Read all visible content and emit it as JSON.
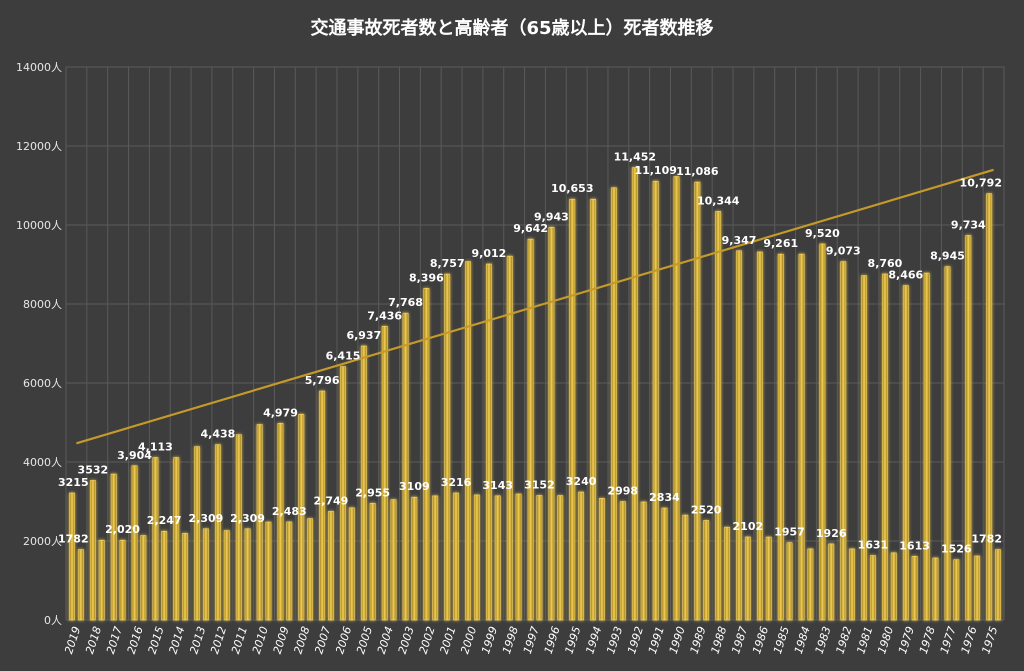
{
  "chart_data": {
    "type": "bar",
    "title": "交通事故死者数と高齢者（65歳以上）死者数推移",
    "xlabel": "",
    "ylabel": "",
    "ylim": [
      0,
      14000
    ],
    "yticks": [
      0,
      2000,
      4000,
      6000,
      8000,
      10000,
      12000,
      14000
    ],
    "y_unit": "人",
    "grid": true,
    "legend": "none",
    "trendline": {
      "type": "linear",
      "series": "total"
    },
    "colors": {
      "background": "#3d3d3d",
      "bar": "#d4a51c",
      "trend": "#c49a2a",
      "grid": "#5a5a5a"
    },
    "categories": [
      "2019",
      "2018",
      "2017",
      "2016",
      "2015",
      "2014",
      "2013",
      "2012",
      "2011",
      "2010",
      "2009",
      "2008",
      "2007",
      "2006",
      "2005",
      "2004",
      "2003",
      "2002",
      "2001",
      "2000",
      "1999",
      "1998",
      "1997",
      "1996",
      "1995",
      "1994",
      "1993",
      "1992",
      "1991",
      "1990",
      "1989",
      "1988",
      "1987",
      "1986",
      "1985",
      "1984",
      "1983",
      "1982",
      "1981",
      "1980",
      "1979",
      "1978",
      "1977",
      "1976",
      "1975"
    ],
    "series": [
      {
        "key": "total",
        "values": [
          3215,
          3532,
          3694,
          3904,
          4113,
          4113,
          4388,
          4438,
          4691,
          4948,
          4979,
          5209,
          5796,
          6415,
          6937,
          7436,
          7768,
          8396,
          8757,
          9073,
          9012,
          9211,
          9642,
          9943,
          10653,
          10653,
          10942,
          11452,
          11109,
          11227,
          11086,
          10344,
          9347,
          9317,
          9261,
          9262,
          9520,
          9073,
          8719,
          8760,
          8466,
          8783,
          8945,
          9734,
          10792
        ],
        "labels": [
          "3215",
          "3532",
          "",
          "3,904",
          "4,113",
          "",
          "",
          "4,438",
          "",
          "",
          "4,979",
          "",
          "5,796",
          "6,415",
          "6,937",
          "7,436",
          "7,768",
          "8,396",
          "8,757",
          "",
          "9,012",
          "",
          "9,642",
          "9,943",
          "10,653",
          "",
          "",
          "11,452",
          "11,109",
          "",
          "11,086",
          "10,344",
          "9,347",
          "",
          "9,261",
          "",
          "9,520",
          "9,073",
          "",
          "8,760",
          "8,466",
          "",
          "8,945",
          "9,734",
          "10,792"
        ]
      },
      {
        "key": "elderly",
        "values": [
          1782,
          2020,
          2020,
          2138,
          2247,
          2193,
          2309,
          2264,
          2309,
          2480,
          2483,
          2565,
          2749,
          2840,
          2955,
          3046,
          3109,
          3142,
          3216,
          3166,
          3143,
          3190,
          3152,
          3150,
          3240,
          3080,
          2998,
          2988,
          2834,
          2655,
          2520,
          2350,
          2102,
          2100,
          1957,
          1800,
          1926,
          1800,
          1631,
          1700,
          1613,
          1570,
          1526,
          1620,
          1782
        ],
        "labels": [
          "1782",
          "",
          "2,020",
          "",
          "2,247",
          "",
          "2,309",
          "",
          "2,309",
          "",
          "2,483",
          "",
          "2,749",
          "",
          "2,955",
          "",
          "3109",
          "",
          "3216",
          "",
          "3143",
          "",
          "3152",
          "",
          "3240",
          "",
          "2998",
          "",
          "2834",
          "",
          "2520",
          "",
          "2102",
          "",
          "1957",
          "",
          "1926",
          "",
          "1631",
          "",
          "1613",
          "",
          "1526",
          "",
          "1782"
        ]
      }
    ]
  }
}
